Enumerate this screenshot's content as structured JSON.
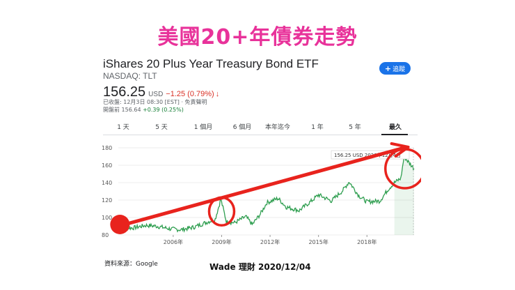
{
  "page_title": "美國20+年債券走勢",
  "fund": {
    "name": "iShares 20 Plus Year Treasury Bond ETF",
    "exchange": "NASDAQ: TLT",
    "follow_label": "追蹤",
    "price": "156.25",
    "currency": "USD",
    "change": "−1.25 (0.79%)",
    "close_info": "已收盤: 12月3日 08:30 [EST] · 免責聲明",
    "premarket_label": "開盤前 156.64",
    "premarket_change": "+0.39 (0.25%)"
  },
  "tabs": [
    {
      "label": "1 天"
    },
    {
      "label": "5 天"
    },
    {
      "label": "1 個月"
    },
    {
      "label": "6 個月"
    },
    {
      "label": "本年迄今"
    },
    {
      "label": "1 年"
    },
    {
      "label": "5 年"
    },
    {
      "label": "最久",
      "active": true
    }
  ],
  "tooltip": "156.25 USD 2020年12月4日",
  "footer": {
    "source": "資料來源：Google",
    "credit": "Wade 理財 2020/12/04"
  },
  "colors": {
    "title": "#e8329a",
    "line": "#2e9e4f",
    "annotation": "#e8231d",
    "follow_button": "#1a73e8"
  },
  "chart_data": {
    "type": "line",
    "ylim": [
      80,
      180
    ],
    "yticks": [
      80,
      100,
      120,
      140,
      160,
      180
    ],
    "xticks": [
      "2006年",
      "2009年",
      "2012年",
      "2015年",
      "2018年"
    ],
    "series": [
      {
        "values_x": [
          2002.6,
          2003.5,
          2004.3,
          2005.0,
          2005.8,
          2006.5,
          2007.3,
          2008.0,
          2008.6,
          2008.95,
          2009.3,
          2009.8,
          2010.5,
          2010.9,
          2011.4,
          2011.8,
          2012.5,
          2013.0,
          2013.8,
          2014.5,
          2015.0,
          2015.8,
          2016.5,
          2016.9,
          2017.5,
          2018.0,
          2018.8,
          2019.3,
          2019.7,
          2020.1,
          2020.3,
          2020.6,
          2020.92
        ],
        "y": [
          89,
          88,
          91,
          90,
          87,
          86,
          89,
          94,
          98,
          121,
          95,
          94,
          101,
          92,
          104,
          117,
          122,
          112,
          108,
          118,
          126,
          119,
          131,
          141,
          125,
          118,
          119,
          132,
          140,
          145,
          170,
          163,
          156.25
        ]
      }
    ]
  }
}
